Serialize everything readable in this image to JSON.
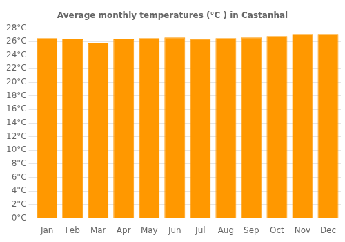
{
  "chart_data": {
    "type": "bar",
    "title": "Average monthly temperatures (°C ) in Castanhal",
    "categories": [
      "Jan",
      "Feb",
      "Mar",
      "Apr",
      "May",
      "Jun",
      "Jul",
      "Aug",
      "Sep",
      "Oct",
      "Nov",
      "Dec"
    ],
    "values": [
      26.5,
      26.3,
      25.8,
      26.3,
      26.5,
      26.6,
      26.4,
      26.5,
      26.6,
      26.8,
      27.1,
      27.1
    ],
    "color": "#FF9800",
    "ylim": [
      0,
      28
    ],
    "yticks": [
      {
        "value": 0,
        "label": "0°C"
      },
      {
        "value": 2,
        "label": "2°C"
      },
      {
        "value": 4,
        "label": "4°C"
      },
      {
        "value": 6,
        "label": "6°C"
      },
      {
        "value": 8,
        "label": "8°C"
      },
      {
        "value": 10,
        "label": "10°C"
      },
      {
        "value": 12,
        "label": "12°C"
      },
      {
        "value": 14,
        "label": "14°C"
      },
      {
        "value": 16,
        "label": "16°C"
      },
      {
        "value": 18,
        "label": "18°C"
      },
      {
        "value": 20,
        "label": "20°C"
      },
      {
        "value": 22,
        "label": "22°C"
      },
      {
        "value": 24,
        "label": "24°C"
      },
      {
        "value": 26,
        "label": "26°C"
      },
      {
        "value": 28,
        "label": "28°C"
      }
    ],
    "grid": true
  }
}
